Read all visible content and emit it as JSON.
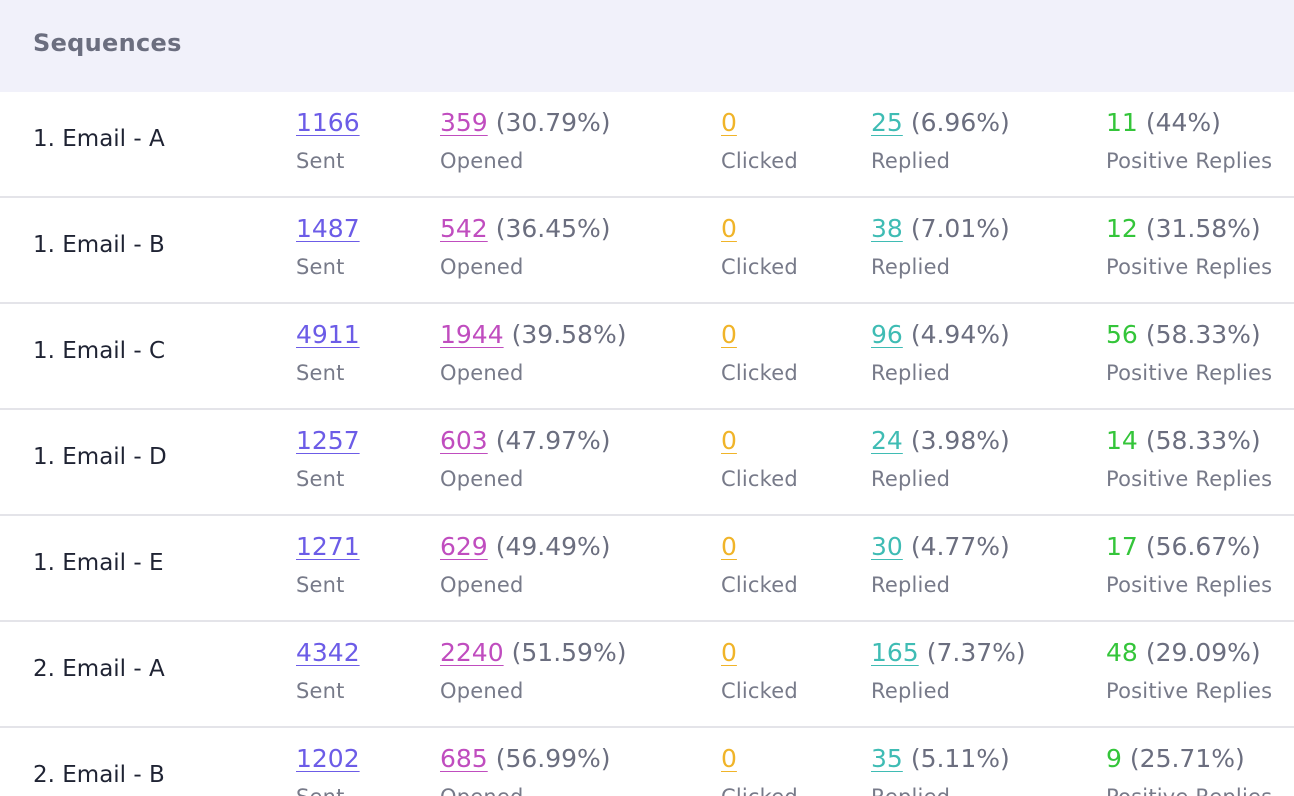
{
  "header": {
    "title": "Sequences"
  },
  "colors": {
    "sent": "#6c5ce7",
    "opened": "#c04dbf",
    "clicked": "#f0b429",
    "replied": "#3fbcb4",
    "positive": "#34c53a"
  },
  "labels": {
    "sent": "Sent",
    "opened": "Opened",
    "clicked": "Clicked",
    "replied": "Replied",
    "positive": "Positive Replies"
  },
  "rows": [
    {
      "name": "1. Email - A",
      "sent": "1166",
      "opened": "359",
      "opened_pct": "(30.79%)",
      "clicked": "0",
      "replied": "25",
      "replied_pct": "(6.96%)",
      "positive": "11",
      "positive_pct": "(44%)"
    },
    {
      "name": "1. Email - B",
      "sent": "1487",
      "opened": "542",
      "opened_pct": "(36.45%)",
      "clicked": "0",
      "replied": "38",
      "replied_pct": "(7.01%)",
      "positive": "12",
      "positive_pct": "(31.58%)"
    },
    {
      "name": "1. Email - C",
      "sent": "4911",
      "opened": "1944",
      "opened_pct": "(39.58%)",
      "clicked": "0",
      "replied": "96",
      "replied_pct": "(4.94%)",
      "positive": "56",
      "positive_pct": "(58.33%)"
    },
    {
      "name": "1. Email - D",
      "sent": "1257",
      "opened": "603",
      "opened_pct": "(47.97%)",
      "clicked": "0",
      "replied": "24",
      "replied_pct": "(3.98%)",
      "positive": "14",
      "positive_pct": "(58.33%)"
    },
    {
      "name": "1. Email - E",
      "sent": "1271",
      "opened": "629",
      "opened_pct": "(49.49%)",
      "clicked": "0",
      "replied": "30",
      "replied_pct": "(4.77%)",
      "positive": "17",
      "positive_pct": "(56.67%)"
    },
    {
      "name": "2. Email - A",
      "sent": "4342",
      "opened": "2240",
      "opened_pct": "(51.59%)",
      "clicked": "0",
      "replied": "165",
      "replied_pct": "(7.37%)",
      "positive": "48",
      "positive_pct": "(29.09%)"
    },
    {
      "name": "2. Email - B",
      "sent": "1202",
      "opened": "685",
      "opened_pct": "(56.99%)",
      "clicked": "0",
      "replied": "35",
      "replied_pct": "(5.11%)",
      "positive": "9",
      "positive_pct": "(25.71%)"
    }
  ]
}
